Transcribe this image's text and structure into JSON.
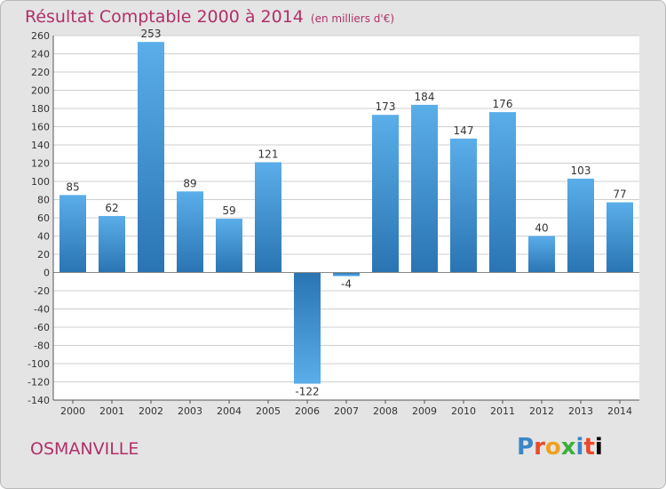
{
  "header": {
    "title": "Résultat Comptable 2000 à 2014",
    "subtitle": "(en milliers d'€)"
  },
  "footer": {
    "town": "OSMANVILLE",
    "logo_text": "Proxiti"
  },
  "colors": {
    "title": "#b0306a",
    "bar_light": "#5aaee9",
    "bar_dark": "#2a74b3",
    "plot_background": "#ffffff",
    "frame_background": "#e4e4e4"
  },
  "chart_data": {
    "type": "bar",
    "title": "Résultat Comptable 2000 à 2014",
    "subtitle": "(en milliers d'€)",
    "xlabel": "",
    "ylabel": "",
    "categories": [
      "2000",
      "2001",
      "2002",
      "2003",
      "2004",
      "2005",
      "2006",
      "2007",
      "2008",
      "2009",
      "2010",
      "2011",
      "2012",
      "2013",
      "2014"
    ],
    "values": [
      85,
      62,
      253,
      89,
      59,
      121,
      -122,
      -4,
      173,
      184,
      147,
      176,
      40,
      103,
      77
    ],
    "ylim": [
      -140,
      260
    ],
    "ytick_step": 20,
    "grid": true,
    "legend": "none"
  }
}
